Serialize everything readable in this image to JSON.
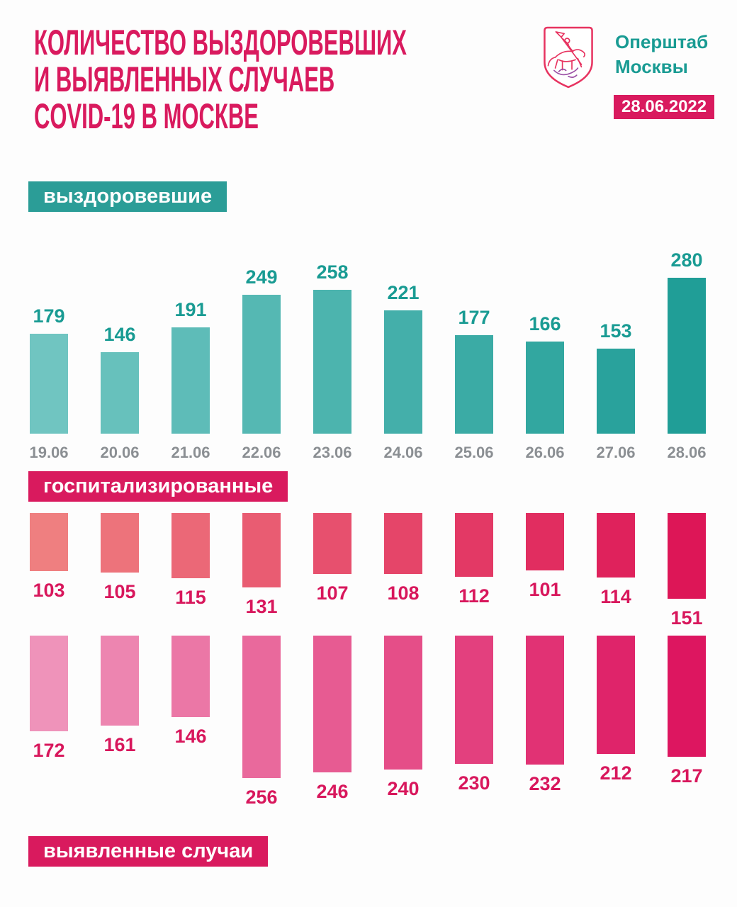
{
  "header": {
    "title_lines": [
      "КОЛИЧЕСТВО ВЫЗДОРОВЕВШИХ",
      "И ВЫЯВЛЕННЫХ СЛУЧАЕВ",
      "COVID-19 В МОСКВЕ"
    ],
    "org_name_lines": [
      "Оперштаб",
      "Москвы"
    ],
    "date_badge": "28.06.2022",
    "logo": "moscow-coat-of-arms"
  },
  "colors": {
    "crimson": "#d91a5e",
    "teal_badge": "#2b9d97",
    "teal_text": "#199b93",
    "date_gray": "#8b8f93",
    "page_background": "#fdfdfd"
  },
  "chart_data": [
    {
      "type": "bar",
      "title": "выздоровевшие",
      "categories": [
        "19.06",
        "20.06",
        "21.06",
        "22.06",
        "23.06",
        "24.06",
        "25.06",
        "26.06",
        "27.06",
        "28.06"
      ],
      "values": [
        179,
        146,
        191,
        249,
        258,
        221,
        177,
        166,
        153,
        280
      ],
      "orientation": "columns-up",
      "data_labels": "above-bars",
      "bar_color_start": "#70c5c1",
      "bar_color_end": "#209e97",
      "value_label_color": "#199b93",
      "category_label_color": "#8b8f93",
      "ylim": [
        0,
        280
      ],
      "grid": false,
      "legend": false
    },
    {
      "type": "bar",
      "title": "госпитализированные",
      "values": [
        103,
        105,
        115,
        131,
        107,
        108,
        112,
        101,
        114,
        151
      ],
      "orientation": "columns-hanging-from-top",
      "data_labels": "below-bars",
      "bar_color_start": "#ef7f80",
      "bar_color_end": "#dd1657",
      "value_label_color": "#d8175c",
      "ylim": [
        0,
        151
      ],
      "grid": false,
      "legend": false
    },
    {
      "type": "bar",
      "title": "выявленные случаи",
      "values": [
        172,
        161,
        146,
        256,
        246,
        240,
        230,
        232,
        212,
        217
      ],
      "orientation": "columns-hanging-from-top",
      "data_labels": "below-bars",
      "bar_color_start": "#ef93ba",
      "bar_color_end": "#dd1660",
      "value_label_color": "#d8175c",
      "ylim": [
        0,
        256
      ],
      "grid": false,
      "legend": false
    }
  ]
}
